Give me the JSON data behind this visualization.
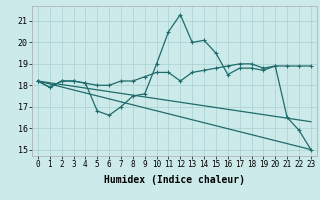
{
  "background_color": "#cdeaea",
  "grid_color": "#aacfcf",
  "line_color": "#1f6b6b",
  "xlabel": "Humidex (Indice chaleur)",
  "ylabel_ticks": [
    15,
    16,
    17,
    18,
    19,
    20,
    21
  ],
  "xlim": [
    -0.5,
    23.5
  ],
  "ylim": [
    14.7,
    21.7
  ],
  "xticks": [
    0,
    1,
    2,
    3,
    4,
    5,
    6,
    7,
    8,
    9,
    10,
    11,
    12,
    13,
    14,
    15,
    16,
    17,
    18,
    19,
    20,
    21,
    22,
    23
  ],
  "line1_x": [
    0,
    1,
    2,
    3,
    4,
    5,
    6,
    7,
    8,
    9,
    10,
    11,
    12,
    13,
    14,
    15,
    16,
    17,
    18,
    19,
    20,
    21,
    22,
    23
  ],
  "line1_y": [
    18.2,
    17.9,
    18.2,
    18.2,
    18.1,
    16.8,
    16.6,
    17.0,
    17.5,
    17.6,
    19.0,
    20.5,
    21.3,
    20.0,
    20.1,
    19.5,
    18.5,
    18.8,
    18.8,
    18.7,
    18.9,
    16.5,
    15.9,
    15.0
  ],
  "line2_x": [
    0,
    1,
    2,
    3,
    4,
    5,
    6,
    7,
    8,
    9,
    10,
    11,
    12,
    13,
    14,
    15,
    16,
    17,
    18,
    19,
    20,
    21,
    22,
    23
  ],
  "line2_y": [
    18.2,
    17.9,
    18.2,
    18.2,
    18.1,
    18.0,
    18.0,
    18.2,
    18.2,
    18.4,
    18.6,
    18.6,
    18.2,
    18.6,
    18.7,
    18.8,
    18.9,
    19.0,
    19.0,
    18.8,
    18.9,
    18.9,
    18.9,
    18.9
  ],
  "line3_x": [
    0,
    23
  ],
  "line3_y": [
    18.2,
    15.0
  ],
  "line4_x": [
    0,
    23
  ],
  "line4_y": [
    18.2,
    16.3
  ],
  "marker_size": 3,
  "linewidth": 0.9,
  "xlabel_fontsize": 7,
  "ytick_fontsize": 6,
  "xtick_fontsize": 5.5
}
